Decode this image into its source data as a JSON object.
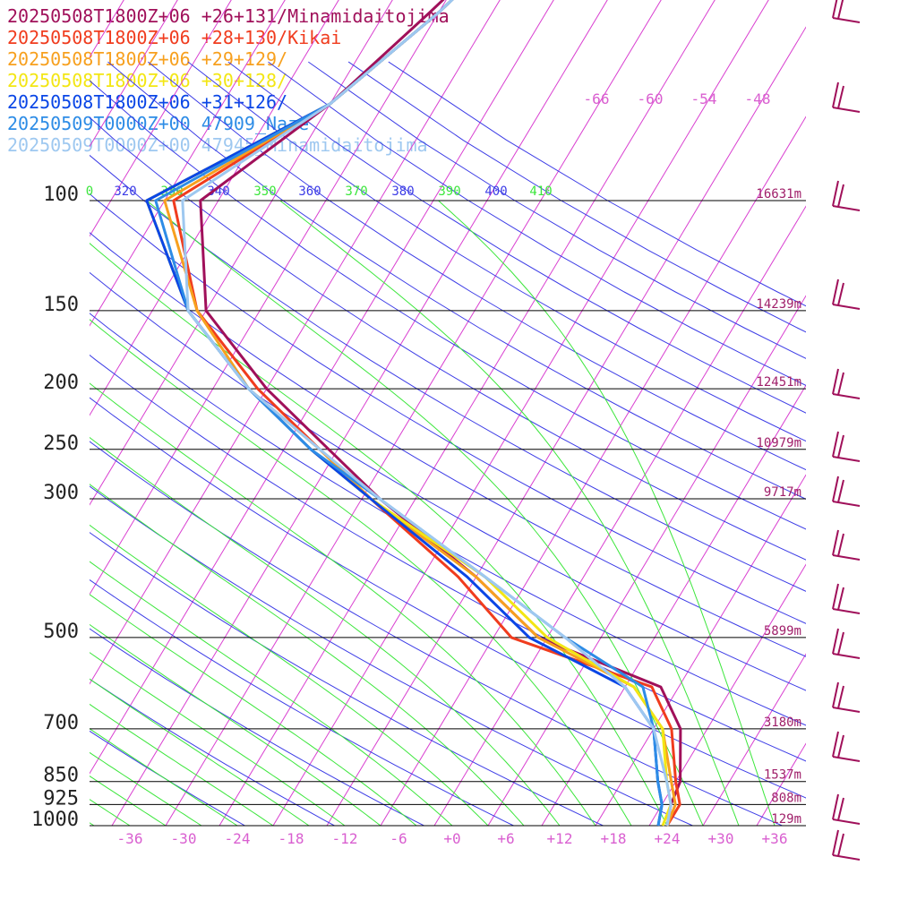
{
  "chart_data": {
    "type": "line",
    "subtype": "skew-T log-p sounding",
    "legend_placement": "top-left",
    "series": [
      {
        "name": "20250508T1800Z+06 +26+131/Minamidaitojima",
        "color": "#a0105a",
        "points": [
          [
            1000,
            24
          ],
          [
            925,
            23
          ],
          [
            850,
            22.5
          ],
          [
            700,
            19
          ],
          [
            600,
            14
          ],
          [
            500,
            -3
          ],
          [
            400,
            -14
          ],
          [
            300,
            -30
          ],
          [
            250,
            -39
          ],
          [
            200,
            -50
          ],
          [
            150,
            -62
          ],
          [
            100,
            -70
          ],
          [
            70,
            -62
          ],
          [
            50,
            -57
          ],
          [
            30,
            -50
          ]
        ]
      },
      {
        "name": "20250508T1800Z+06 +28+130/Kikai",
        "color": "#f03c1e",
        "points": [
          [
            1000,
            24
          ],
          [
            925,
            24
          ],
          [
            850,
            22
          ],
          [
            700,
            18
          ],
          [
            600,
            13
          ],
          [
            500,
            -6
          ],
          [
            400,
            -16
          ],
          [
            300,
            -31
          ],
          [
            250,
            -40
          ],
          [
            200,
            -51
          ],
          [
            150,
            -63
          ],
          [
            100,
            -73
          ],
          [
            70,
            -62
          ],
          [
            50,
            -56
          ],
          [
            30,
            -49
          ]
        ]
      },
      {
        "name": "20250508T1800Z+06 +29+129/",
        "color": "#f7a01e",
        "points": [
          [
            1000,
            24
          ],
          [
            925,
            23.5
          ],
          [
            850,
            21.5
          ],
          [
            700,
            17
          ],
          [
            600,
            11
          ],
          [
            500,
            -3
          ],
          [
            400,
            -14
          ],
          [
            300,
            -31
          ],
          [
            250,
            -40
          ],
          [
            200,
            -52
          ],
          [
            150,
            -63
          ],
          [
            100,
            -74
          ],
          [
            70,
            -62
          ],
          [
            50,
            -56
          ],
          [
            30,
            -49
          ]
        ]
      },
      {
        "name": "20250508T1800Z+06 +30+128/",
        "color": "#f3e614",
        "points": [
          [
            1000,
            23.5
          ],
          [
            925,
            23
          ],
          [
            850,
            21
          ],
          [
            700,
            17
          ],
          [
            600,
            11
          ],
          [
            500,
            -2
          ],
          [
            400,
            -13
          ],
          [
            300,
            -31
          ],
          [
            250,
            -41
          ],
          [
            200,
            -52
          ],
          [
            150,
            -64
          ],
          [
            100,
            -76
          ],
          [
            70,
            -62
          ],
          [
            50,
            -56
          ],
          [
            30,
            -49
          ]
        ]
      },
      {
        "name": "20250508T1800Z+06 +31+126/",
        "color": "#0a46e6",
        "points": [
          [
            1000,
            23
          ],
          [
            925,
            22
          ],
          [
            850,
            20
          ],
          [
            700,
            16
          ],
          [
            600,
            10
          ],
          [
            500,
            -4
          ],
          [
            400,
            -15
          ],
          [
            300,
            -31
          ],
          [
            250,
            -41
          ],
          [
            200,
            -52
          ],
          [
            150,
            -64
          ],
          [
            100,
            -76
          ],
          [
            70,
            -62
          ],
          [
            50,
            -56
          ],
          [
            30,
            -49
          ]
        ]
      },
      {
        "name": "20250509T0000Z+00 47909_Naze",
        "color": "#2d8ce6",
        "points": [
          [
            1000,
            23
          ],
          [
            925,
            22
          ],
          [
            850,
            20
          ],
          [
            700,
            16
          ],
          [
            600,
            12
          ],
          [
            500,
            0
          ],
          [
            400,
            -13
          ],
          [
            300,
            -30
          ],
          [
            250,
            -41
          ],
          [
            200,
            -52
          ],
          [
            150,
            -64
          ],
          [
            100,
            -75
          ],
          [
            70,
            -62
          ],
          [
            50,
            -56
          ],
          [
            30,
            -49
          ]
        ]
      },
      {
        "name": "20250509T0000Z+00 47945_Minamidaitojima",
        "color": "#9ec8f0",
        "points": [
          [
            1000,
            24
          ],
          [
            925,
            23
          ],
          [
            850,
            21
          ],
          [
            700,
            16
          ],
          [
            600,
            10
          ],
          [
            500,
            0
          ],
          [
            400,
            -13
          ],
          [
            300,
            -30
          ],
          [
            250,
            -40
          ],
          [
            200,
            -52
          ],
          [
            150,
            -64
          ],
          [
            100,
            -72
          ],
          [
            70,
            -62
          ],
          [
            50,
            -56
          ],
          [
            30,
            -49
          ]
        ]
      }
    ],
    "pressure_levels": [
      "100",
      "150",
      "200",
      "250",
      "300",
      "500",
      "700",
      "850",
      "925",
      "1000"
    ],
    "heights": [
      {
        "p": 100,
        "label": "16631m"
      },
      {
        "p": 150,
        "label": "14239m"
      },
      {
        "p": 200,
        "label": "12451m"
      },
      {
        "p": 250,
        "label": "10979m"
      },
      {
        "p": 300,
        "label": "9717m"
      },
      {
        "p": 500,
        "label": "5899m"
      },
      {
        "p": 700,
        "label": "3180m"
      },
      {
        "p": 850,
        "label": "1537m"
      },
      {
        "p": 925,
        "label": "808m"
      },
      {
        "p": 1000,
        "label": "129m"
      }
    ],
    "temperature_ticks": [
      "-36",
      "-30",
      "-24",
      "-18",
      "-12",
      "-6",
      "+0",
      "+6",
      "+12",
      "+18",
      "+24",
      "+30",
      "+36"
    ],
    "theta_labels": [
      "0",
      "320",
      "330",
      "340",
      "350",
      "360",
      "370",
      "380",
      "390",
      "400",
      "410"
    ],
    "upper_temp_labels": [
      "-66",
      "-60",
      "-54",
      "-48"
    ],
    "xlim": [
      -40,
      40
    ],
    "ylim": [
      1000,
      100
    ],
    "y_scale": "log",
    "grid": true,
    "wind_barbs": "right margin, 16-18 per sounding, mostly westerly"
  },
  "colors": {
    "isotherm": "#d93fd0",
    "dry_adiabat": "#3c3ce6",
    "moist_adiabat": "#3ce63c",
    "isobar": "#000000",
    "barb": "#a0105a"
  }
}
